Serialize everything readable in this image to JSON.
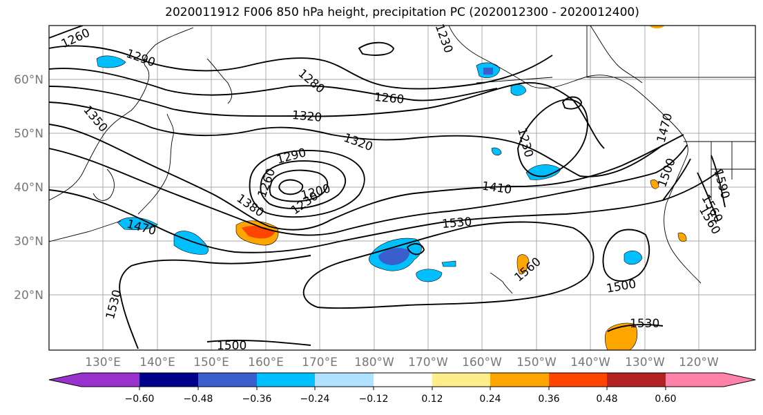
{
  "title": "2020011912 F006 850 hPa height, precipitation PC (2020012300 - 2020012400)",
  "lat_labels": [
    "60°N",
    "50°N",
    "40°N",
    "30°N",
    "20°N"
  ],
  "lon_labels": [
    "130°E",
    "140°E",
    "150°E",
    "160°E",
    "170°E",
    "180°W",
    "170°W",
    "160°W",
    "150°W",
    "140°W",
    "130°W",
    "120°W"
  ],
  "contour_labels": [
    "1260",
    "1290",
    "1280",
    "1230",
    "1260",
    "1320",
    "1350",
    "1320",
    "1290",
    "1260",
    "1230",
    "1200",
    "1230",
    "1410",
    "1380",
    "1470",
    "1500",
    "1530",
    "1470",
    "1560",
    "1590",
    "1560",
    "1560",
    "1500",
    "1530",
    "1530",
    "1500"
  ],
  "colorbar": {
    "tick_labels": [
      "−0.60",
      "−0.48",
      "−0.36",
      "−0.24",
      "−0.12",
      "0.12",
      "0.24",
      "0.36",
      "0.48",
      "0.60"
    ],
    "colors": [
      "#9932cc",
      "#00008b",
      "#3a5fcd",
      "#00bfff",
      "#b0e2ff",
      "#ffffff",
      "#ffec8b",
      "#ffa500",
      "#ff4500",
      "#b22222",
      "#ff82ab"
    ]
  }
}
